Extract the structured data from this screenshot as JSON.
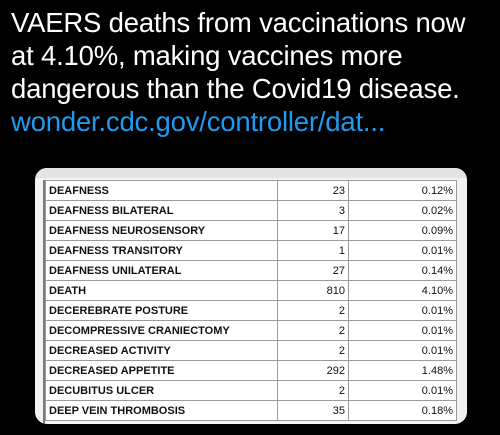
{
  "tweet": {
    "line1": "VAERS deaths from vaccinations now",
    "line2": "at 4.10%, making vaccines more",
    "line3": "dangerous than the Covid19 disease.",
    "link": "wonder.cdc.gov/controller/dat..."
  },
  "colors": {
    "link": "#1d9bf0",
    "background": "#000000"
  },
  "table": {
    "rows": [
      {
        "term": "DEAFNESS",
        "count": "23",
        "percent": "0.12%"
      },
      {
        "term": "DEAFNESS BILATERAL",
        "count": "3",
        "percent": "0.02%"
      },
      {
        "term": "DEAFNESS NEUROSENSORY",
        "count": "17",
        "percent": "0.09%"
      },
      {
        "term": "DEAFNESS TRANSITORY",
        "count": "1",
        "percent": "0.01%"
      },
      {
        "term": "DEAFNESS UNILATERAL",
        "count": "27",
        "percent": "0.14%"
      },
      {
        "term": "DEATH",
        "count": "810",
        "percent": "4.10%"
      },
      {
        "term": "DECEREBRATE POSTURE",
        "count": "2",
        "percent": "0.01%"
      },
      {
        "term": "DECOMPRESSIVE CRANIECTOMY",
        "count": "2",
        "percent": "0.01%"
      },
      {
        "term": "DECREASED ACTIVITY",
        "count": "2",
        "percent": "0.01%"
      },
      {
        "term": "DECREASED APPETITE",
        "count": "292",
        "percent": "1.48%"
      },
      {
        "term": "DECUBITUS ULCER",
        "count": "2",
        "percent": "0.01%"
      },
      {
        "term": "DEEP VEIN THROMBOSIS",
        "count": "35",
        "percent": "0.18%"
      }
    ]
  }
}
